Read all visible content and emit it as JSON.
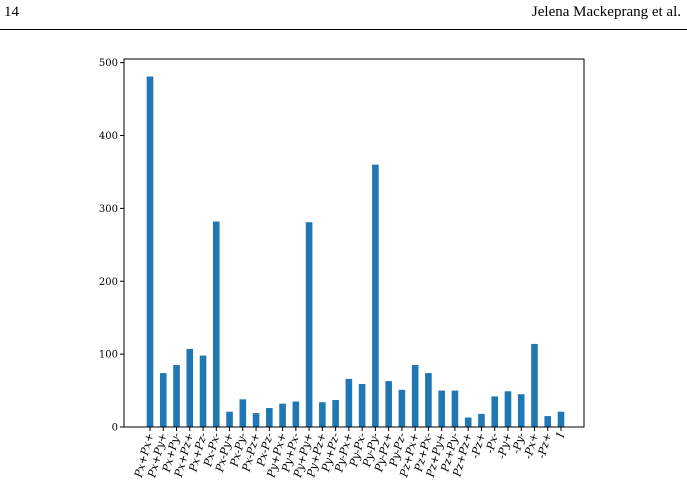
{
  "header": {
    "page_number": "14",
    "running_head": "Jelena Mackeprang et al."
  },
  "chart_data": {
    "type": "bar",
    "title": "",
    "xlabel": "",
    "ylabel": "",
    "ylim": [
      0,
      505
    ],
    "yticks": [
      0,
      100,
      200,
      300,
      400,
      500
    ],
    "grid": false,
    "bar_color": "#1f77b4",
    "categories": [
      "Px+Px+",
      "Px+Py+",
      "Px+Py-",
      "Px+Pz+",
      "Px+Pz-",
      "Px-Px-",
      "Px-Py+",
      "Px-Py-",
      "Px-Pz+",
      "Px-Pz-",
      "Py+Px+",
      "Py+Px-",
      "Py+Py+",
      "Py+Pz+",
      "Py+Pz-",
      "Py-Px+",
      "Py-Px-",
      "Py-Py-",
      "Py-Pz+",
      "Py-Pz-",
      "Pz+Px+",
      "Pz+Px-",
      "Pz+Py+",
      "Pz+Py-",
      "Pz+Pz+",
      "-Pz+",
      "-Px-",
      "-Py+",
      "-Py-",
      "-Px+",
      "-Pz+",
      "I"
    ],
    "values": [
      481,
      74,
      85,
      107,
      98,
      282,
      21,
      38,
      19,
      26,
      32,
      35,
      281,
      34,
      37,
      66,
      59,
      360,
      63,
      51,
      85,
      74,
      50,
      50,
      13,
      18,
      42,
      49,
      45,
      114,
      15,
      21
    ]
  }
}
